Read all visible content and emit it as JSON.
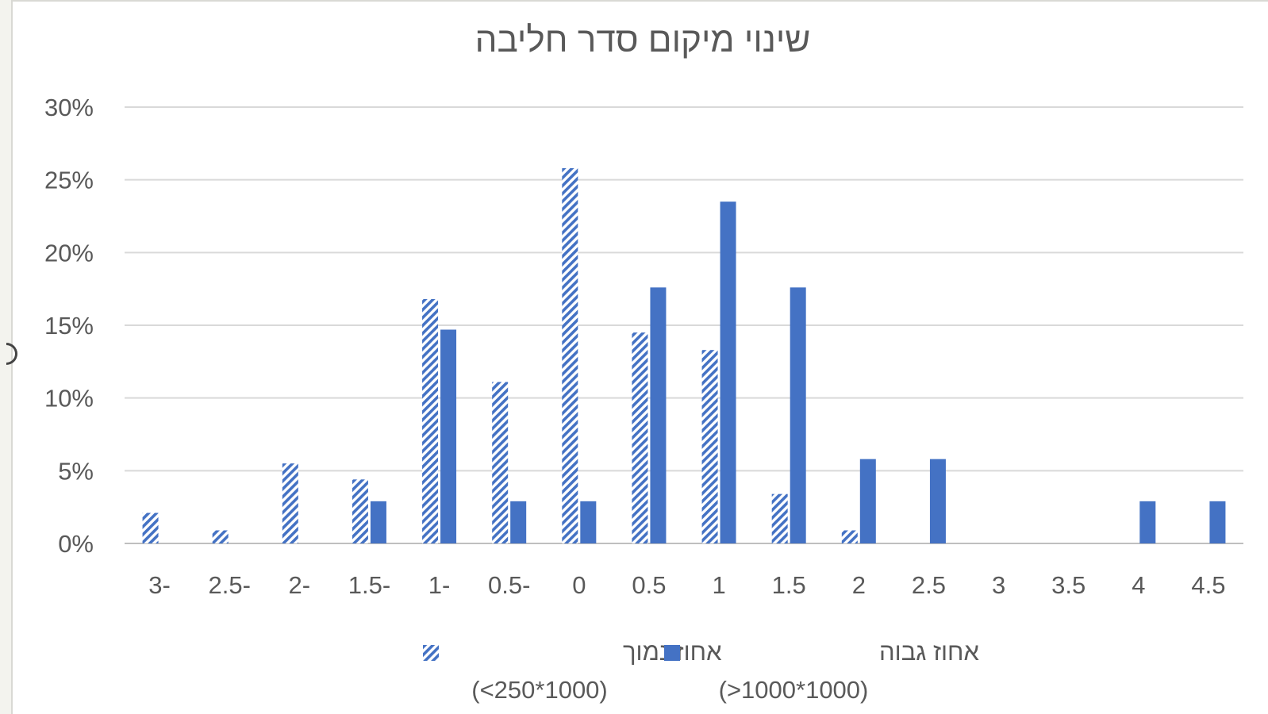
{
  "chart_data": {
    "type": "bar",
    "title": "שינוי מיקום סדר חליבה",
    "xlabel": "",
    "ylabel": "",
    "categories": [
      "-3",
      "-2.5",
      "-2",
      "-1.5",
      "-1",
      "-0.5",
      "0",
      "0.5",
      "1",
      "1.5",
      "2",
      "2.5",
      "3",
      "3.5",
      "4",
      "4.5"
    ],
    "category_labels": [
      "3-",
      "2.5-",
      "2-",
      "1.5-",
      "1-",
      "0.5-",
      "0",
      "0.5",
      "1",
      "1.5",
      "2",
      "2.5",
      "3",
      "3.5",
      "4",
      "4.5"
    ],
    "ylim": [
      0,
      0.3
    ],
    "yticks": [
      0,
      0.05,
      0.1,
      0.15,
      0.2,
      0.25,
      0.3
    ],
    "ytick_labels": [
      "0%",
      "5%",
      "10%",
      "15%",
      "20%",
      "25%",
      "30%"
    ],
    "grid": true,
    "legend_position": "bottom",
    "series": [
      {
        "name": "אחוז נמוך",
        "name_line2": "(<250*1000)",
        "pattern": "hatched",
        "color": "#4472c4",
        "values": [
          0.021,
          0.009,
          0.055,
          0.044,
          0.168,
          0.111,
          0.258,
          0.145,
          0.133,
          0.034,
          0.009,
          0,
          0,
          0,
          0,
          0
        ]
      },
      {
        "name": "אחוז גבוה",
        "name_line2": "(>1000*1000)",
        "pattern": "solid",
        "color": "#4472c4",
        "values": [
          0,
          0,
          0,
          0.029,
          0.147,
          0.029,
          0.029,
          0.176,
          0.235,
          0.176,
          0.058,
          0.058,
          0,
          0,
          0.029,
          0.029
        ]
      }
    ]
  }
}
